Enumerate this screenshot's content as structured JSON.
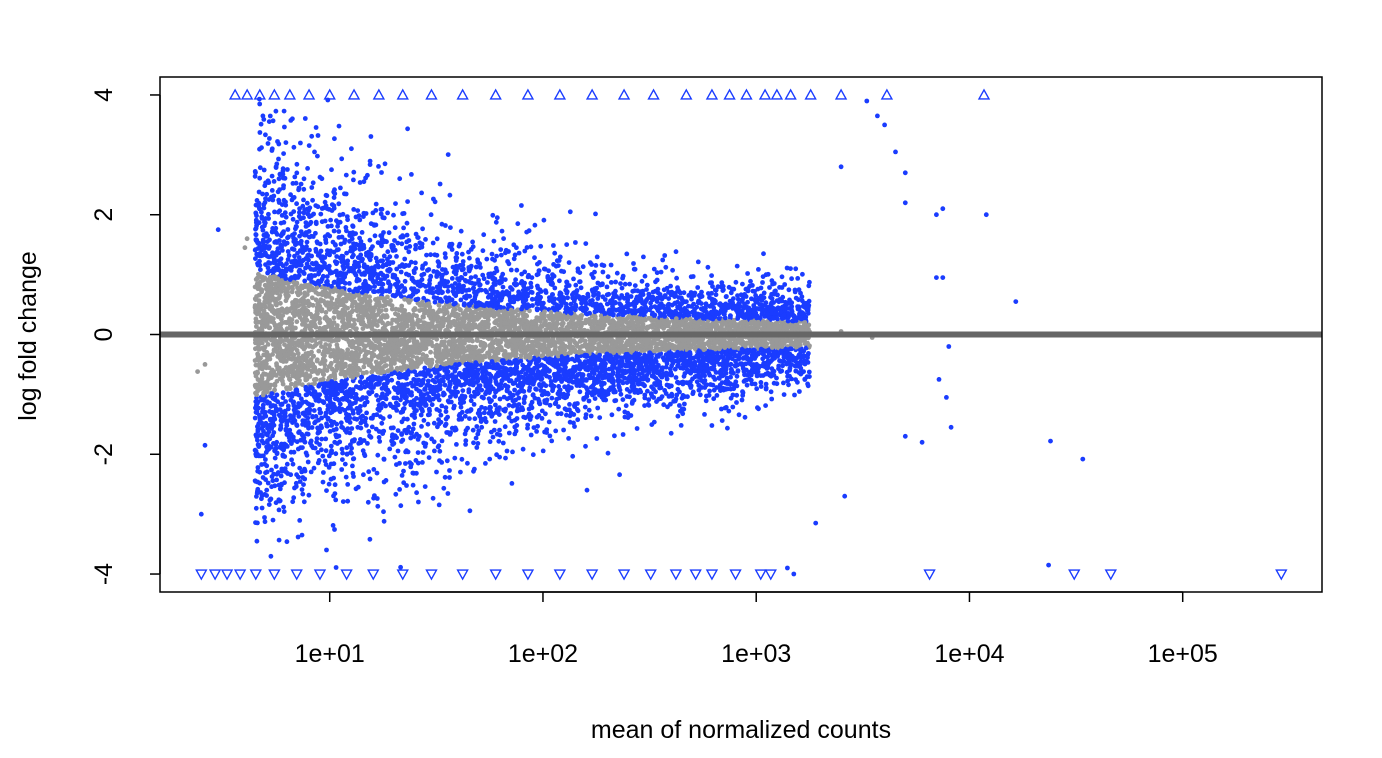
{
  "chart_data": {
    "type": "scatter",
    "title": "",
    "xlabel": "mean of normalized counts",
    "ylabel": "log fold change",
    "x_scale": "log10",
    "xlim": [
      1.6,
      450000
    ],
    "ylim": [
      -4.3,
      4.3
    ],
    "x_ticks": [
      {
        "value": 10,
        "label": "1e+01"
      },
      {
        "value": 100,
        "label": "1e+02"
      },
      {
        "value": 1000,
        "label": "1e+03"
      },
      {
        "value": 10000,
        "label": "1e+04"
      },
      {
        "value": 100000,
        "label": "1e+05"
      }
    ],
    "y_ticks": [
      {
        "value": -4,
        "label": "-4"
      },
      {
        "value": -2,
        "label": "-2"
      },
      {
        "value": 0,
        "label": "0"
      },
      {
        "value": 2,
        "label": "2"
      },
      {
        "value": 4,
        "label": "4"
      }
    ],
    "reference_line": {
      "y": 0,
      "color": "#666666"
    },
    "colors": {
      "significant": "#1a3cff",
      "not_significant": "#999999"
    },
    "grid": false,
    "legend": "none",
    "series": [
      {
        "group": "significant",
        "points": [
          [
            3.0,
            1.75
          ],
          [
            12000,
            2.0
          ],
          [
            16500,
            0.55
          ],
          [
            24000,
            -1.78
          ],
          [
            34000,
            -2.08
          ],
          [
            23500,
            -3.85
          ],
          [
            2.6,
            -1.85
          ],
          [
            2.5,
            -3.0
          ],
          [
            7000,
            2.0
          ],
          [
            7500,
            2.1
          ],
          [
            7000,
            0.95
          ],
          [
            7500,
            0.95
          ],
          [
            7200,
            -0.75
          ],
          [
            7800,
            -1.05
          ],
          [
            8200,
            -1.55
          ],
          [
            8000,
            -0.2
          ],
          [
            5000,
            2.7
          ],
          [
            5000,
            2.2
          ],
          [
            4500,
            3.05
          ],
          [
            3700,
            3.65
          ],
          [
            3300,
            3.9
          ],
          [
            4000,
            3.5
          ],
          [
            2500,
            2.8
          ],
          [
            2600,
            -2.7
          ],
          [
            1900,
            -3.15
          ],
          [
            6000,
            -1.8
          ],
          [
            5000,
            -1.7
          ],
          [
            1500,
            -4.0
          ],
          [
            1400,
            -3.9
          ]
        ]
      },
      {
        "group": "not_significant",
        "points": [
          [
            2.4,
            -0.62
          ],
          [
            2.6,
            -0.5
          ],
          [
            4.0,
            1.45
          ],
          [
            4.1,
            1.6
          ],
          [
            2500,
            0.05
          ],
          [
            3000,
            0.0
          ],
          [
            3500,
            -0.05
          ]
        ]
      },
      {
        "group": "out_of_range_up",
        "marker": "triangle-up",
        "points": [
          [
            3.6,
            4
          ],
          [
            4.1,
            4
          ],
          [
            4.7,
            4
          ],
          [
            5.5,
            4
          ],
          [
            6.5,
            4
          ],
          [
            8,
            4
          ],
          [
            10,
            4
          ],
          [
            13,
            4
          ],
          [
            17,
            4
          ],
          [
            22,
            4
          ],
          [
            30,
            4
          ],
          [
            42,
            4
          ],
          [
            60,
            4
          ],
          [
            85,
            4
          ],
          [
            120,
            4
          ],
          [
            170,
            4
          ],
          [
            240,
            4
          ],
          [
            330,
            4
          ],
          [
            470,
            4
          ],
          [
            620,
            4
          ],
          [
            750,
            4
          ],
          [
            900,
            4
          ],
          [
            1100,
            4
          ],
          [
            1250,
            4
          ],
          [
            1450,
            4
          ],
          [
            1800,
            4
          ],
          [
            2500,
            4
          ],
          [
            4100,
            4
          ],
          [
            11700,
            4
          ]
        ]
      },
      {
        "group": "out_of_range_down",
        "marker": "triangle-down",
        "points": [
          [
            2.5,
            -4
          ],
          [
            2.9,
            -4
          ],
          [
            3.3,
            -4
          ],
          [
            3.8,
            -4
          ],
          [
            4.5,
            -4
          ],
          [
            5.5,
            -4
          ],
          [
            7,
            -4
          ],
          [
            9,
            -4
          ],
          [
            12,
            -4
          ],
          [
            16,
            -4
          ],
          [
            22,
            -4
          ],
          [
            30,
            -4
          ],
          [
            42,
            -4
          ],
          [
            60,
            -4
          ],
          [
            85,
            -4
          ],
          [
            120,
            -4
          ],
          [
            170,
            -4
          ],
          [
            240,
            -4
          ],
          [
            320,
            -4
          ],
          [
            420,
            -4
          ],
          [
            520,
            -4
          ],
          [
            620,
            -4
          ],
          [
            800,
            -4
          ],
          [
            1050,
            -4
          ],
          [
            1170,
            -4
          ],
          [
            6500,
            -4
          ],
          [
            31000,
            -4
          ],
          [
            46000,
            -4
          ],
          [
            290000,
            -4
          ]
        ]
      }
    ]
  }
}
